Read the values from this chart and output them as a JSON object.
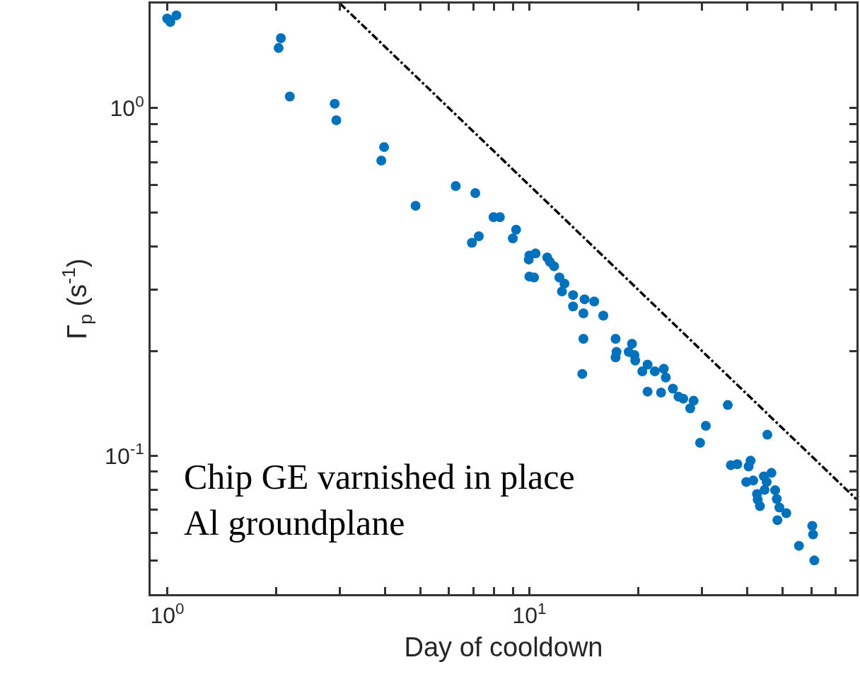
{
  "chart_data": {
    "type": "scatter",
    "xlabel": "Day of cooldown",
    "ylabel": "Γ$_{p}$ (s$^{-1}$)",
    "annotations": [
      "Chip GE varnished in place\nAl groundplane"
    ],
    "log": "xy",
    "grid": false,
    "xlim": [
      0.9,
      80
    ],
    "ylim": [
      0.04,
      2
    ],
    "xticks": [
      {
        "value": 1,
        "label": "10$^{0}$"
      },
      {
        "value": 2,
        "label": null
      },
      {
        "value": 3,
        "label": null
      },
      {
        "value": 4,
        "label": null
      },
      {
        "value": 5,
        "label": null
      },
      {
        "value": 6,
        "label": null
      },
      {
        "value": 7,
        "label": null
      },
      {
        "value": 8,
        "label": null
      },
      {
        "value": 9,
        "label": null
      },
      {
        "value": 10,
        "label": "10$^{1}$"
      },
      {
        "value": 20,
        "label": null
      },
      {
        "value": 30,
        "label": null
      },
      {
        "value": 40,
        "label": null
      },
      {
        "value": 50,
        "label": null
      },
      {
        "value": 60,
        "label": null
      },
      {
        "value": 70,
        "label": null
      }
    ],
    "yticks": [
      {
        "value": 0.05,
        "label": null
      },
      {
        "value": 0.06,
        "label": null
      },
      {
        "value": 0.07,
        "label": null
      },
      {
        "value": 0.08,
        "label": null
      },
      {
        "value": 0.09,
        "label": null
      },
      {
        "value": 0.1,
        "label": "10$^{-1}$"
      },
      {
        "value": 0.2,
        "label": null
      },
      {
        "value": 0.3,
        "label": null
      },
      {
        "value": 0.4,
        "label": null
      },
      {
        "value": 0.5,
        "label": null
      },
      {
        "value": 0.6,
        "label": null
      },
      {
        "value": 0.7,
        "label": null
      },
      {
        "value": 0.8,
        "label": null
      },
      {
        "value": 0.9,
        "label": null
      },
      {
        "value": 1,
        "label": "10$^{0}$"
      }
    ],
    "series": [
      {
        "marker": "circle",
        "color": "#0072bd",
        "x": [
          1.0,
          1.02,
          1.06,
          2.06,
          2.03,
          2.18,
          2.9,
          2.93,
          3.97,
          3.9,
          4.85,
          6.26,
          7.09,
          7.96,
          8.29,
          9.19,
          9.0,
          7.25,
          6.94,
          10.4,
          10.0,
          9.96,
          11.2,
          11.4,
          11.7,
          10.0,
          10.3,
          12.1,
          12.5,
          12.3,
          13.2,
          13.2,
          14.2,
          15.1,
          14.1,
          16.0,
          14.1,
          14.0,
          17.3,
          17.4,
          17.3,
          19.2,
          18.8,
          19.5,
          19.6,
          20.5,
          21.2,
          21.2,
          22.2,
          23.5,
          23.8,
          23.1,
          24.9,
          25.8,
          26.6,
          28.4,
          27.8,
          30.7,
          29.6,
          35.3,
          45.4,
          36.0,
          37.5,
          40.8,
          40.3,
          39.7,
          41.5,
          44.4,
          46.6,
          45.2,
          42.5,
          44.6,
          42.7,
          43.3,
          47.7,
          48.2,
          49.0,
          51.2,
          48.4,
          60.4,
          60.7,
          55.5,
          61.2
        ],
        "values": [
          1.81,
          1.77,
          1.85,
          1.59,
          1.49,
          1.08,
          1.03,
          0.923,
          0.773,
          0.707,
          0.524,
          0.597,
          0.57,
          0.486,
          0.486,
          0.447,
          0.422,
          0.428,
          0.41,
          0.382,
          0.377,
          0.367,
          0.372,
          0.361,
          0.351,
          0.328,
          0.326,
          0.326,
          0.313,
          0.297,
          0.29,
          0.269,
          0.282,
          0.278,
          0.257,
          0.253,
          0.217,
          0.172,
          0.217,
          0.199,
          0.192,
          0.21,
          0.199,
          0.195,
          0.188,
          0.175,
          0.183,
          0.153,
          0.175,
          0.178,
          0.168,
          0.152,
          0.156,
          0.148,
          0.146,
          0.144,
          0.137,
          0.122,
          0.109,
          0.14,
          0.115,
          0.094,
          0.0946,
          0.0968,
          0.0932,
          0.0841,
          0.0849,
          0.0873,
          0.0893,
          0.0841,
          0.0776,
          0.0798,
          0.0748,
          0.0717,
          0.0796,
          0.0751,
          0.071,
          0.0684,
          0.0653,
          0.0629,
          0.0594,
          0.0551,
          0.05
        ]
      },
      {
        "type": "line",
        "color": "#000000",
        "line_style": "dashed",
        "x": [
          3,
          80
        ],
        "values": [
          2,
          0.075
        ]
      }
    ]
  }
}
